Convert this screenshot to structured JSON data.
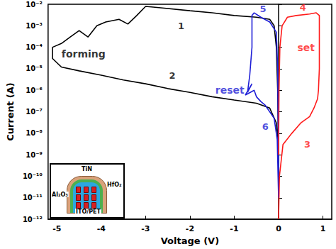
{
  "chart_data": {
    "type": "line",
    "x_label": "Voltage (V)",
    "y_label": "Current (A)",
    "log": "y",
    "grid": false,
    "xlim": [
      -5.2,
      1.2
    ],
    "xticks": [
      -5,
      -4,
      -3,
      -2,
      -1,
      0,
      1
    ],
    "ylim": [
      1e-12,
      0.01
    ],
    "yticks": [
      {
        "value": 1e-12,
        "label": "10⁻¹²"
      },
      {
        "value": 1e-11,
        "label": "10⁻¹¹"
      },
      {
        "value": 1e-10,
        "label": "10⁻¹⁰"
      },
      {
        "value": 1e-09,
        "label": "10⁻⁹"
      },
      {
        "value": 1e-08,
        "label": "10⁻⁸"
      },
      {
        "value": 1e-07,
        "label": "10⁻⁷"
      },
      {
        "value": 1e-06,
        "label": "10⁻⁶"
      },
      {
        "value": 1e-05,
        "label": "10⁻⁵"
      },
      {
        "value": 0.0001,
        "label": "10⁻⁴"
      },
      {
        "value": 0.001,
        "label": "10⁻³"
      },
      {
        "value": 0.01,
        "label": "10⁻²"
      }
    ],
    "series": [
      {
        "color": "#000000",
        "x": [
          0,
          -0.05,
          -0.2,
          -0.5,
          -1,
          -1.5,
          -2,
          -2.5,
          -3,
          -3.5,
          -4,
          -4.5,
          -4.9,
          -5.1,
          -5.1,
          -4.9,
          -4.7,
          -4.5,
          -4.3,
          -4.1,
          -3.9,
          -3.6,
          -3.4,
          -3.2,
          -3,
          -2.7,
          -2,
          -1.5,
          -1,
          -0.5,
          -0.2,
          -0.1,
          -0.05,
          -0.02,
          0
        ],
        "values": [
          3e-09,
          3e-08,
          1.5e-07,
          2.5e-07,
          3.5e-07,
          5e-07,
          8e-07,
          1.2e-06,
          2e-06,
          3e-06,
          5e-06,
          8e-06,
          1.2e-05,
          3e-05,
          0.0001,
          0.00015,
          0.0003,
          0.0006,
          0.0003,
          0.001,
          0.0015,
          0.002,
          0.0012,
          0.003,
          0.008,
          0.007,
          0.005,
          0.004,
          0.003,
          0.0025,
          0.002,
          0.001,
          0.0001,
          1e-06,
          1e-09
        ]
      },
      {
        "color": "#1f1fd6",
        "x": [
          0,
          -0.02,
          -0.05,
          -0.2,
          -0.4,
          -0.55,
          -0.6,
          -0.6,
          -0.65,
          -0.7,
          -0.6,
          -0.75,
          -0.55,
          -0.5,
          -0.4,
          -0.3,
          -0.2,
          -0.1,
          -0.03,
          0
        ],
        "values": [
          1e-10,
          1e-05,
          0.0005,
          0.0015,
          0.0025,
          0.004,
          0.003,
          0.0001,
          5e-06,
          8e-07,
          2e-06,
          6e-07,
          1e-06,
          5e-07,
          3e-07,
          2e-07,
          1e-07,
          5e-08,
          5e-09,
          1e-11
        ]
      },
      {
        "color": "#ff1a1a",
        "x": [
          0,
          0.02,
          0.1,
          0.3,
          0.5,
          0.7,
          0.8,
          0.88,
          0.9,
          0.92,
          0.92,
          0.85,
          0.7,
          0.4,
          0.2,
          0.08,
          0.03,
          0.01,
          0
        ],
        "values": [
          1e-12,
          1e-10,
          3e-09,
          1e-08,
          3e-08,
          6e-08,
          1.5e-07,
          4e-07,
          1e-06,
          1e-05,
          0.003,
          0.004,
          0.0035,
          0.003,
          0.0025,
          0.001,
          0.0001,
          1e-06,
          1e-09
        ]
      }
    ],
    "annotations": [
      {
        "text": "forming",
        "x": -4.4,
        "y": 5e-05,
        "color": "#000000"
      },
      {
        "text": "1",
        "x": -2.2,
        "y": 0.001,
        "color": "#000000"
      },
      {
        "text": "2",
        "x": -2.4,
        "y": 5e-06,
        "color": "#000000"
      },
      {
        "text": "reset",
        "x": -1.1,
        "y": 1e-06,
        "color": "#1f1fd6"
      },
      {
        "text": "5",
        "x": -0.35,
        "y": 0.006,
        "color": "#1f1fd6"
      },
      {
        "text": "6",
        "x": -0.3,
        "y": 2e-08,
        "color": "#1f1fd6"
      },
      {
        "text": "set",
        "x": 0.62,
        "y": 0.0001,
        "color": "#ff1a1a"
      },
      {
        "text": "3",
        "x": 0.65,
        "y": 3e-09,
        "color": "#ff1a1a"
      },
      {
        "text": "4",
        "x": 0.55,
        "y": 0.007,
        "color": "#ff1a1a"
      }
    ],
    "inset": {
      "labels": [
        "TiN",
        "HfO₂",
        "Al₂O₃",
        "ITO/PET"
      ]
    }
  }
}
